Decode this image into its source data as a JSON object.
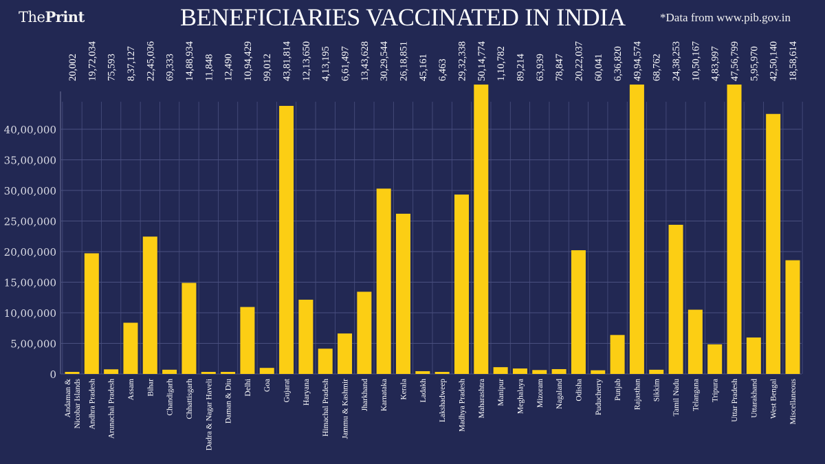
{
  "header": {
    "logo_light": "The",
    "logo_bold": "Print",
    "title": "BENEFICIARIES VACCINATED IN INDIA",
    "source_note": "*Data from www.pib.gov.in"
  },
  "colors": {
    "background": "#222853",
    "bar": "#fcce14",
    "grid": "#4a5080",
    "text": "#ffffff"
  },
  "chart_data": {
    "type": "bar",
    "title": "BENEFICIARIES VACCINATED IN INDIA",
    "xlabel": "",
    "ylabel": "",
    "ylim": [
      0,
      4700000
    ],
    "grid": true,
    "legend": "none",
    "yticks": [
      0,
      500000,
      1000000,
      1500000,
      2000000,
      2500000,
      3000000,
      3500000,
      4000000
    ],
    "ytick_labels": [
      "0",
      "5,00,000",
      "10,00,000",
      "15,00,000",
      "20,00,000",
      "25,00,000",
      "30,00,000",
      "35,00,000",
      "40,00,000"
    ],
    "categories": [
      [
        "Andaman &",
        "Nicobar Islands"
      ],
      [
        "Andhra Pradesh"
      ],
      [
        "Arunachal Pradesh"
      ],
      [
        "Assam"
      ],
      [
        "Bihar"
      ],
      [
        "Chandigarh"
      ],
      [
        "Chhattisgarh"
      ],
      [
        "Dadra & Nagar Haveli"
      ],
      [
        "Daman & Diu"
      ],
      [
        "Delhi"
      ],
      [
        "Goa"
      ],
      [
        "Gujarat"
      ],
      [
        "Haryana"
      ],
      [
        "Himachal Pradesh"
      ],
      [
        "Jammu & Kashmir"
      ],
      [
        "Jharkhand"
      ],
      [
        "Karnataka"
      ],
      [
        "Kerala"
      ],
      [
        "Ladakh"
      ],
      [
        "Lakshadweep"
      ],
      [
        "Madhya Pradesh"
      ],
      [
        "Maharashtra"
      ],
      [
        "Manipur"
      ],
      [
        "Meghalaya"
      ],
      [
        "Mizoram"
      ],
      [
        "Nagaland"
      ],
      [
        "Odisha"
      ],
      [
        "Puducherry"
      ],
      [
        "Punjab"
      ],
      [
        "Rajasthan"
      ],
      [
        "Sikkim"
      ],
      [
        "Tamil Nadu"
      ],
      [
        "Telangana"
      ],
      [
        "Tripura"
      ],
      [
        "Uttar Pradesh"
      ],
      [
        "Uttarakhand"
      ],
      [
        "West Bengal"
      ],
      [
        "Miscellaneous"
      ]
    ],
    "value_labels": [
      "20,002",
      "19,72,034",
      "75,593",
      "8,37,127",
      "22,45,036",
      "69,333",
      "14,88,934",
      "11,848",
      "12,490",
      "10,94,429",
      "99,012",
      "43,81,814",
      "12,13,650",
      "4,13,195",
      "6,61,497",
      "13,43,628",
      "30,29,544",
      "26,18,851",
      "45,161",
      "6,463",
      "29,32,338",
      "50,14,774",
      "1,10,782",
      "89,214",
      "63,939",
      "78,847",
      "20,22,037",
      "60,041",
      "6,36,820",
      "49,94,574",
      "68,762",
      "24,38,253",
      "10,50,167",
      "4,83,997",
      "47,56,799",
      "5,95,970",
      "42,50,140",
      "18,58,614"
    ],
    "values": [
      20002,
      1972034,
      75593,
      837127,
      2245036,
      69333,
      1488934,
      11848,
      12490,
      1094429,
      99012,
      4381814,
      1213650,
      413195,
      661497,
      1343628,
      3029544,
      2618851,
      45161,
      6463,
      2932338,
      5014774,
      110782,
      89214,
      63939,
      78847,
      2022037,
      60041,
      636820,
      4994574,
      68762,
      2438253,
      1050167,
      483997,
      4756799,
      595970,
      4250140,
      1858614
    ]
  }
}
